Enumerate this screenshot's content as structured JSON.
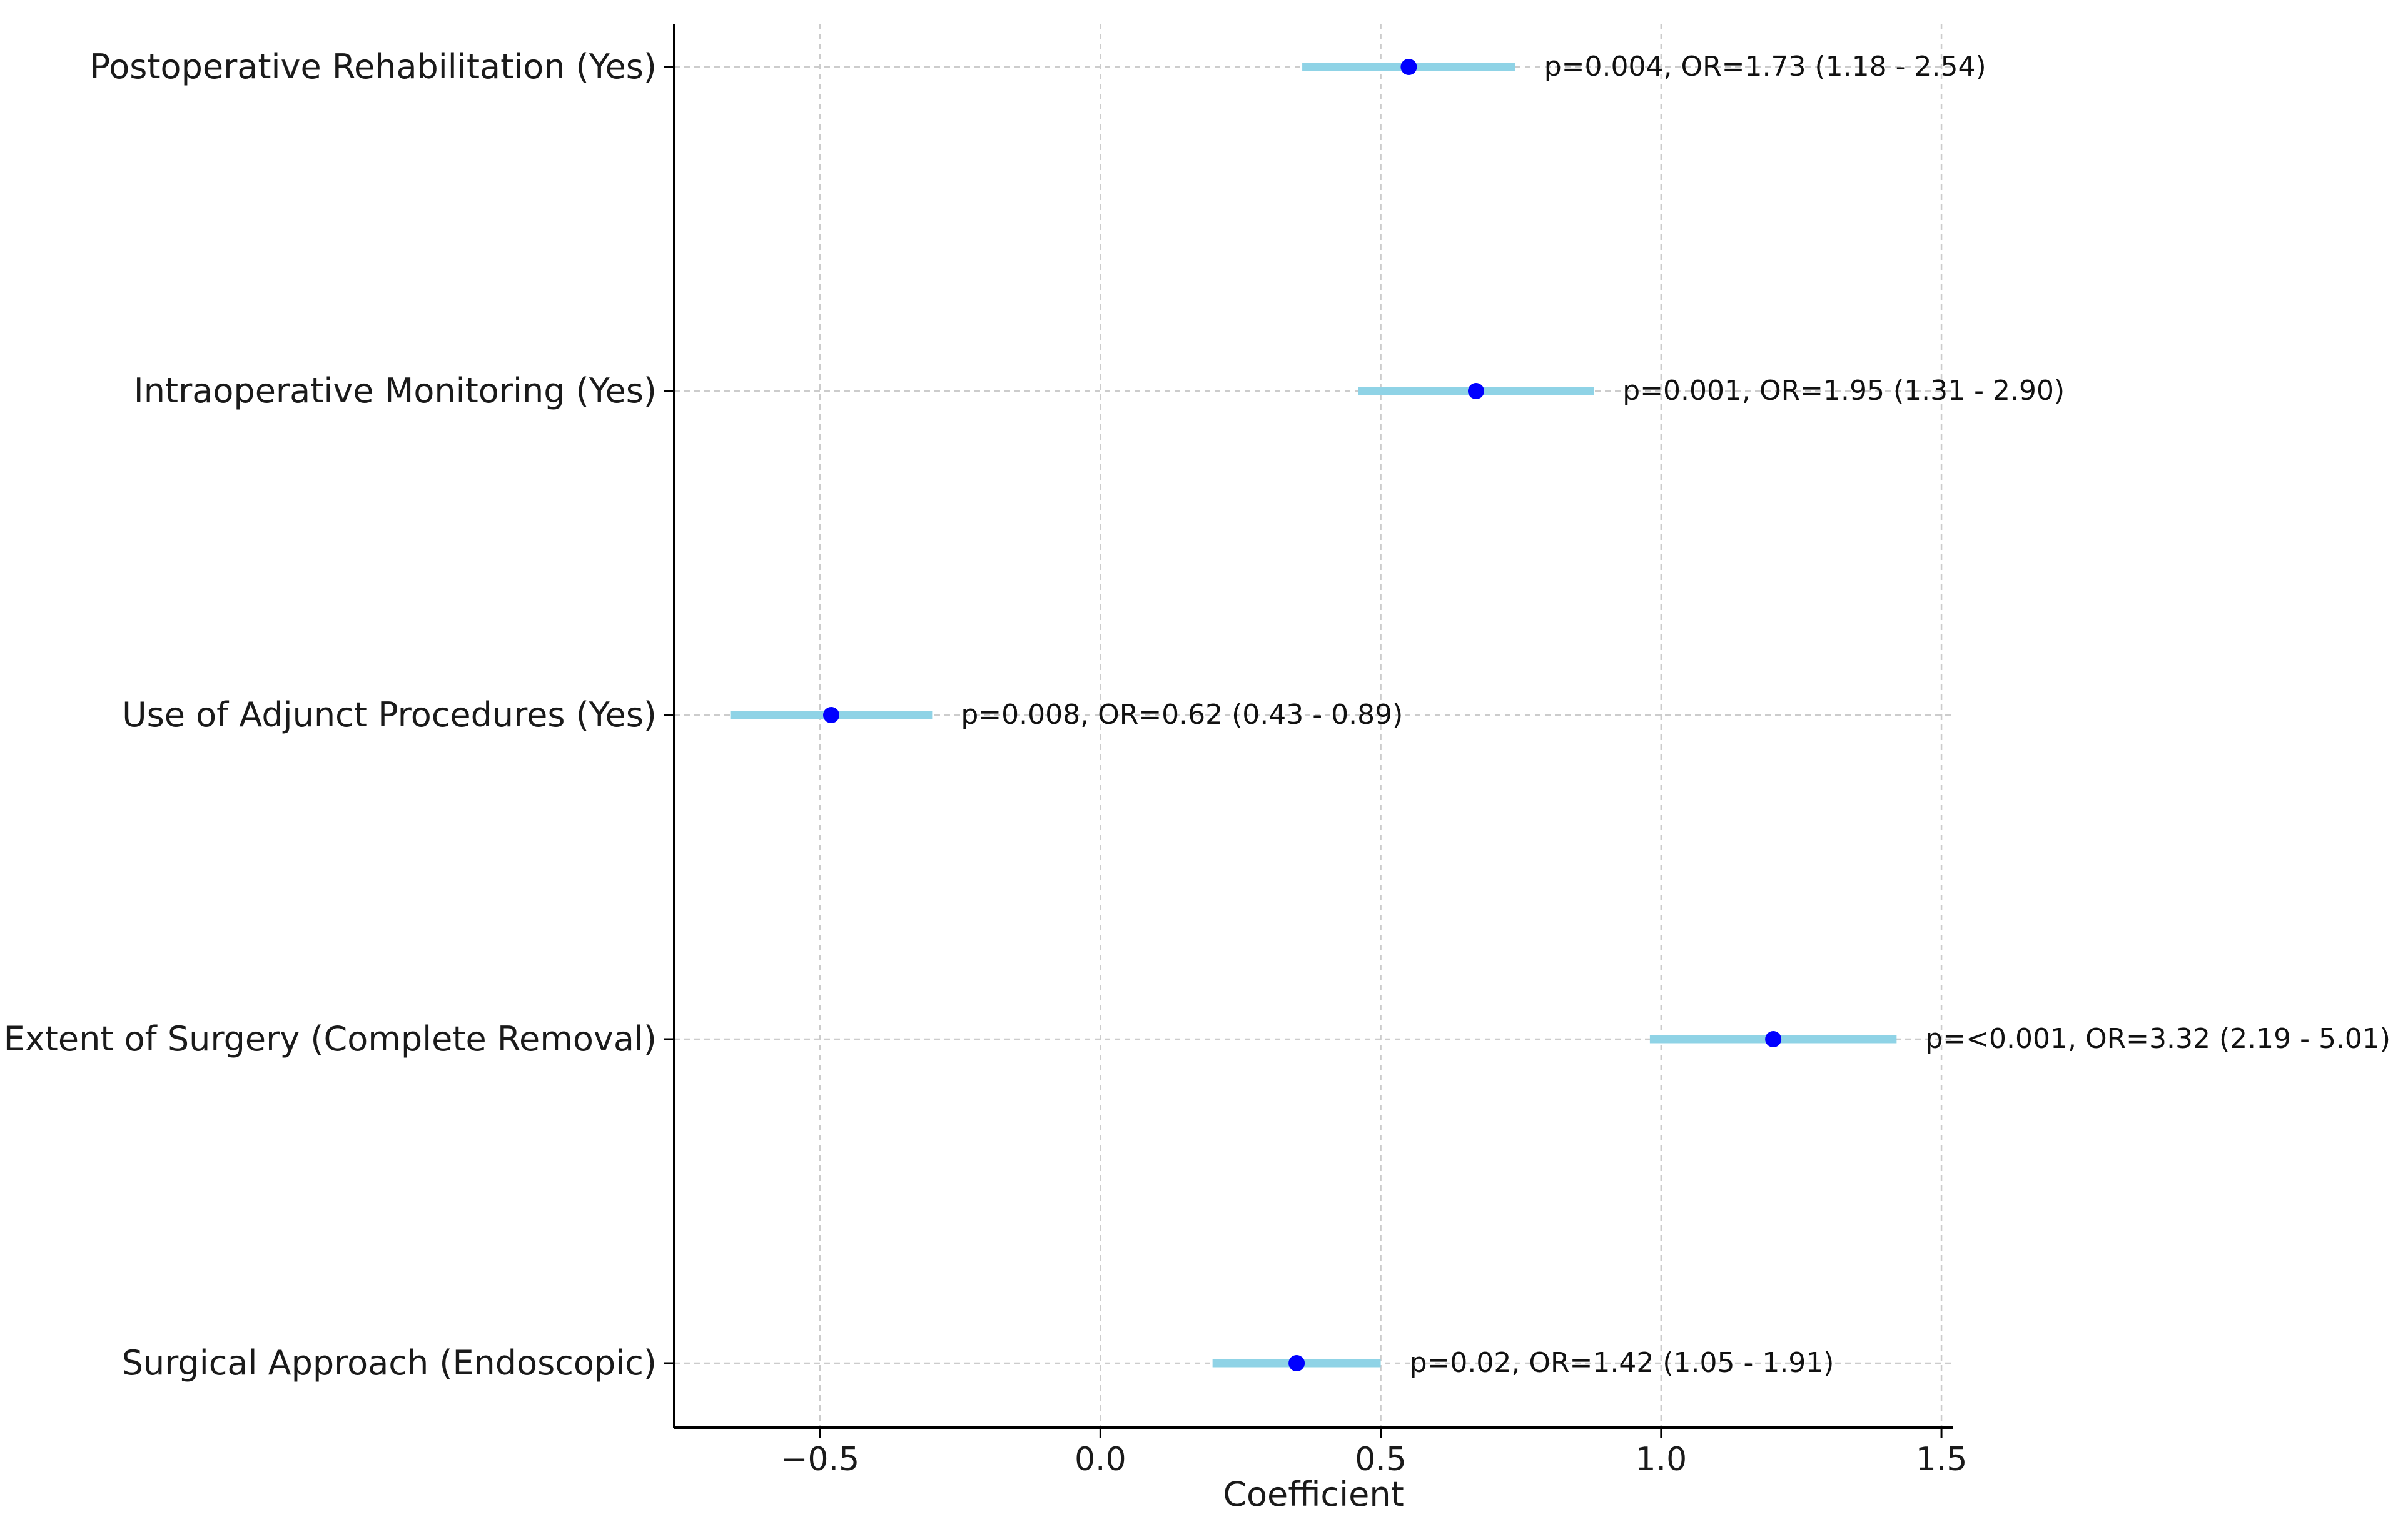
{
  "chart_data": {
    "type": "scatter",
    "xlabel": "Coefficient",
    "xlim": [
      -0.76,
      1.52
    ],
    "xticks": [
      -0.5,
      0.0,
      0.5,
      1.0,
      1.5
    ],
    "xtick_labels": [
      "−0.5",
      "0.0",
      "0.5",
      "1.0",
      "1.5"
    ],
    "grid": true,
    "colors": {
      "point": "#0000ff",
      "interval": "#8fd3e6",
      "grid": "#cccccc",
      "axis": "#000000"
    },
    "rows": [
      {
        "label": "Postoperative Rehabilitation (Yes)",
        "coef": 0.55,
        "ci_low": 0.36,
        "ci_high": 0.74,
        "annotation": "p=0.004, OR=1.73 (1.18 - 2.54)"
      },
      {
        "label": "Intraoperative Monitoring (Yes)",
        "coef": 0.67,
        "ci_low": 0.46,
        "ci_high": 0.88,
        "annotation": "p=0.001, OR=1.95 (1.31 - 2.90)"
      },
      {
        "label": "Use of Adjunct Procedures (Yes)",
        "coef": -0.48,
        "ci_low": -0.66,
        "ci_high": -0.3,
        "annotation": "p=0.008, OR=0.62 (0.43 - 0.89)"
      },
      {
        "label": "Extent of Surgery (Complete Removal)",
        "coef": 1.2,
        "ci_low": 0.98,
        "ci_high": 1.42,
        "annotation": "p=<0.001, OR=3.32 (2.19 - 5.01)"
      },
      {
        "label": "Surgical Approach (Endoscopic)",
        "coef": 0.35,
        "ci_low": 0.2,
        "ci_high": 0.5,
        "annotation": "p=0.02, OR=1.42 (1.05 - 1.91)"
      }
    ]
  }
}
